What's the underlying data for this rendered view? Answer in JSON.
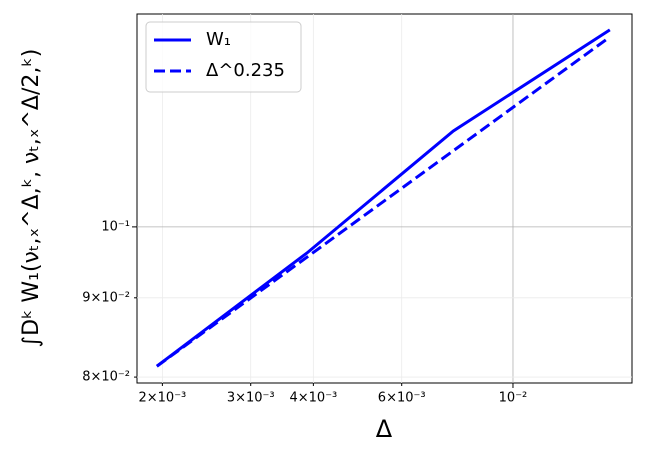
{
  "chart_data": {
    "type": "line",
    "x_label": "Δ",
    "y_label": "∫Dᵏ W₁(νₜ,ₓ^Δ,ᵏ, νₜ,ₓ^Δ/2,ᵏ)",
    "log_x": true,
    "log_y": true,
    "grid": true,
    "legend": "upper left",
    "xlim": [
      0.00178,
      0.01727
    ],
    "ylim": [
      0.0793,
      0.1372
    ],
    "xticks": [
      {
        "value": 0.002,
        "label": "2×10⁻³"
      },
      {
        "value": 0.003,
        "label": "3×10⁻³"
      },
      {
        "value": 0.004,
        "label": "4×10⁻³"
      },
      {
        "value": 0.006,
        "label": "6×10⁻³"
      },
      {
        "value": 0.01,
        "label": "10⁻²"
      }
    ],
    "yticks": [
      {
        "value": 0.08,
        "label": "8×10⁻²"
      },
      {
        "value": 0.09,
        "label": "9×10⁻²"
      },
      {
        "value": 0.1,
        "label": "10⁻¹"
      }
    ],
    "series": [
      {
        "name": "W₁",
        "color": "#0000ff",
        "dash": "solid",
        "x": [
          0.00195,
          0.0039,
          0.0076,
          0.0156
        ],
        "values": [
          0.0813,
          0.0963,
          0.1153,
          0.134
        ]
      },
      {
        "name": "Δ^0.235",
        "color": "#0000ff",
        "dash": "dashed",
        "x": [
          0.00195,
          0.0156
        ],
        "values": [
          0.0813,
          0.1326
        ]
      }
    ]
  }
}
